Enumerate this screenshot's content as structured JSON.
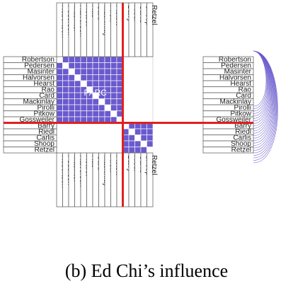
{
  "names": [
    "Robertson",
    "Pedersen",
    "Masinter",
    "Halvorsen",
    "Hearst",
    "Rao",
    "Card",
    "Mackinlay",
    "Pirolli",
    "Pitkow",
    "Gossweiler",
    "Barry",
    "Riedl",
    "Carlis",
    "Shoop",
    "Retzel"
  ],
  "cluster_label": "PARC",
  "caption": "(b) Ed Chi’s influence",
  "clusters": [
    {
      "start": 0,
      "end": 10
    },
    {
      "start": 11,
      "end": 15
    }
  ],
  "colors": {
    "cell_fill": "#6a5acd",
    "cell_grid": "#ffffff",
    "separator": "#e02020",
    "arc": "#6a5acd",
    "label_border": "#555555"
  }
}
